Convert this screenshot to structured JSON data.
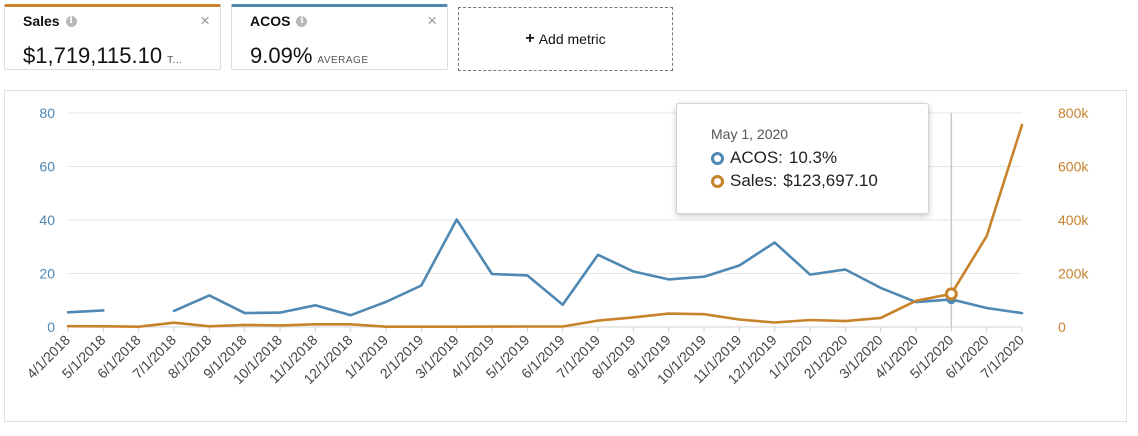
{
  "metrics": {
    "sales": {
      "title": "Sales",
      "value": "$1,719,115.10",
      "suffix": "T...",
      "color": "#c8822a",
      "info_icon": "info-icon",
      "close_icon": "close-icon",
      "close_glyph": "×"
    },
    "acos": {
      "title": "ACOS",
      "value": "9.09%",
      "suffix": "AVERAGE",
      "color": "#4f88b3",
      "info_icon": "info-icon",
      "close_icon": "close-icon",
      "close_glyph": "×"
    },
    "add_metric": {
      "plus": "+",
      "label": "Add metric"
    }
  },
  "tooltip": {
    "date": "May 1, 2020",
    "acos_label": "ACOS:",
    "acos_value": "10.3%",
    "sales_label": "Sales:",
    "sales_value": "$123,697.10"
  },
  "chart_data": {
    "type": "line",
    "x": [
      "4/1/2018",
      "5/1/2018",
      "6/1/2018",
      "7/1/2018",
      "8/1/2018",
      "9/1/2018",
      "10/1/2018",
      "11/1/2018",
      "12/1/2018",
      "1/1/2019",
      "2/1/2019",
      "3/1/2019",
      "4/1/2019",
      "5/1/2019",
      "6/1/2019",
      "7/1/2019",
      "8/1/2019",
      "9/1/2019",
      "10/1/2019",
      "11/1/2019",
      "12/1/2019",
      "1/1/2020",
      "2/1/2020",
      "3/1/2020",
      "4/1/2020",
      "5/1/2020",
      "6/1/2020",
      "7/1/2020"
    ],
    "series": [
      {
        "name": "ACOS",
        "axis": "left",
        "color": "#4f88b3",
        "values": [
          5.5,
          6.2,
          null,
          6.0,
          11.8,
          5.2,
          5.4,
          8.1,
          4.4,
          9.4,
          15.5,
          40.2,
          19.8,
          19.3,
          8.3,
          27.0,
          20.8,
          17.8,
          18.8,
          23.0,
          31.6,
          19.6,
          21.5,
          14.6,
          9.3,
          10.3,
          7.1,
          5.2
        ]
      },
      {
        "name": "Sales",
        "axis": "right",
        "color": "#c8822a",
        "values": [
          3000,
          2500,
          1000,
          16000,
          2500,
          8000,
          6000,
          10000,
          10000,
          1000,
          1000,
          1000,
          1500,
          2000,
          2000,
          24000,
          36000,
          50000,
          48000,
          28000,
          17000,
          26000,
          22000,
          34000,
          98000,
          123697.1,
          340000,
          755000
        ]
      }
    ],
    "y_left": {
      "min": 0,
      "max": 80,
      "ticks": [
        "0",
        "20",
        "40",
        "60",
        "80"
      ],
      "tick_values": [
        0,
        20,
        40,
        60,
        80
      ]
    },
    "y_right": {
      "min": 0,
      "max": 800000,
      "ticks": [
        "0",
        "200k",
        "400k",
        "600k",
        "800k"
      ],
      "tick_values": [
        0,
        200000,
        400000,
        600000,
        800000
      ]
    },
    "highlight_index": 25,
    "grid": true
  }
}
